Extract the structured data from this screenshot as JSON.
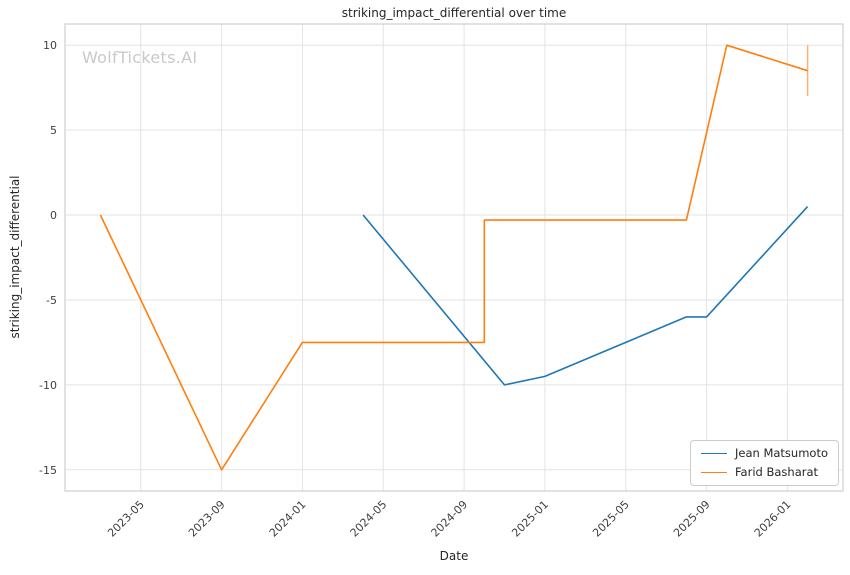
{
  "chart_data": {
    "type": "line",
    "title": "striking_impact_differential over time",
    "xlabel": "Date",
    "ylabel": "striking_impact_differential",
    "watermark": "WolfTickets.AI",
    "grid": true,
    "legend_position": "lower right",
    "x_ticks": [
      "2023-05",
      "2023-09",
      "2024-01",
      "2024-05",
      "2024-09",
      "2025-01",
      "2025-05",
      "2025-09",
      "2026-01"
    ],
    "y_ticks": [
      -15,
      -10,
      -5,
      0,
      5,
      10
    ],
    "ylim": [
      -16.25,
      11.25
    ],
    "series": [
      {
        "name": "Jean Matsumoto",
        "color": "#1f77b4",
        "points": [
          [
            "2024-04",
            0.0
          ],
          [
            "2024-11",
            -10.0
          ],
          [
            "2025-01",
            -9.5
          ],
          [
            "2025-02",
            -9.0
          ],
          [
            "2025-05",
            -7.5
          ],
          [
            "2025-08",
            -6.0
          ],
          [
            "2025-09",
            -6.0
          ],
          [
            "2026-02",
            0.5
          ]
        ]
      },
      {
        "name": "Farid Basharat",
        "color": "#ff7f0e",
        "points": [
          [
            "2023-03",
            0.0
          ],
          [
            "2023-09",
            -15.0
          ],
          [
            "2024-01",
            -7.5
          ],
          [
            "2024-10",
            -7.5
          ],
          [
            "2024-10",
            -0.3
          ],
          [
            "2025-08",
            -0.3
          ],
          [
            "2025-10",
            10.0
          ],
          [
            "2026-02",
            8.5
          ]
        ],
        "error_bar": {
          "x": "2026-02",
          "low": 7.0,
          "high": 10.0
        }
      }
    ]
  }
}
